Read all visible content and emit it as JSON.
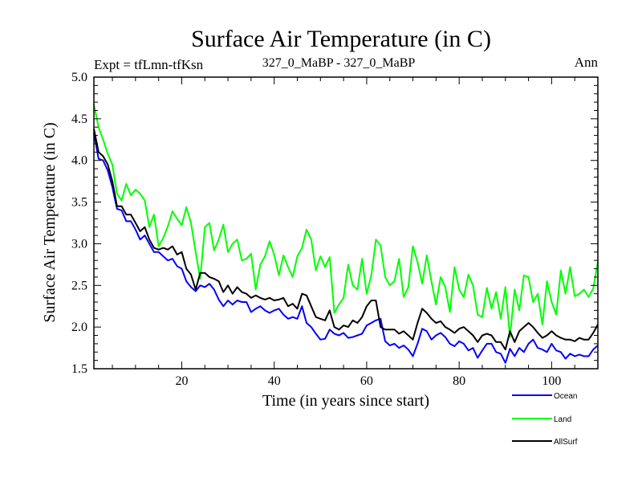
{
  "chart_data": {
    "type": "line",
    "title": "Surface Air Temperature (in C)",
    "left_label": "Expt = tfLmn-tfKsn",
    "center_label": "327_0_MaBP - 327_0_MaBP",
    "right_label": "Ann",
    "xlabel": "Time (in years since start)",
    "ylabel": "Surface Air Temperature (in C)",
    "xlim": [
      1,
      110
    ],
    "ylim": [
      1.5,
      5.0
    ],
    "x_ticks": [
      20,
      40,
      60,
      80,
      100
    ],
    "y_ticks": [
      "1.5",
      "2.0",
      "2.5",
      "3.0",
      "3.5",
      "4.0",
      "4.5",
      "5.0"
    ],
    "series": [
      {
        "name": "Ocean",
        "color": "#0000ff",
        "values": [
          4.33,
          4.02,
          4.0,
          3.88,
          3.68,
          3.42,
          3.4,
          3.27,
          3.27,
          3.17,
          3.05,
          3.1,
          3.0,
          2.9,
          2.9,
          2.85,
          2.8,
          2.82,
          2.73,
          2.7,
          2.55,
          2.48,
          2.43,
          2.5,
          2.48,
          2.52,
          2.45,
          2.33,
          2.25,
          2.32,
          2.27,
          2.32,
          2.3,
          2.3,
          2.18,
          2.22,
          2.25,
          2.2,
          2.17,
          2.2,
          2.22,
          2.15,
          2.1,
          2.12,
          2.1,
          2.25,
          2.05,
          2.0,
          1.92,
          1.85,
          1.86,
          1.97,
          1.92,
          1.9,
          1.93,
          1.87,
          1.88,
          1.9,
          1.92,
          2.02,
          2.05,
          2.08,
          2.1,
          1.83,
          1.78,
          1.8,
          1.75,
          1.78,
          1.73,
          1.65,
          1.8,
          1.98,
          1.95,
          1.85,
          1.9,
          1.93,
          1.88,
          1.8,
          1.77,
          1.83,
          1.8,
          1.72,
          1.75,
          1.63,
          1.72,
          1.8,
          1.8,
          1.7,
          1.68,
          1.57,
          1.74,
          1.65,
          1.75,
          1.7,
          1.8,
          1.85,
          1.75,
          1.73,
          1.7,
          1.8,
          1.72,
          1.7,
          1.62,
          1.68,
          1.65,
          1.67,
          1.65,
          1.65,
          1.73,
          1.78
        ]
      },
      {
        "name": "Land",
        "color": "#00ff00",
        "values": [
          4.67,
          4.4,
          4.25,
          4.08,
          3.95,
          3.6,
          3.52,
          3.72,
          3.58,
          3.65,
          3.6,
          3.52,
          3.2,
          3.35,
          2.97,
          3.07,
          3.21,
          3.39,
          3.3,
          3.22,
          3.44,
          3.25,
          2.9,
          2.58,
          3.2,
          3.25,
          2.92,
          3.05,
          3.23,
          2.9,
          3.0,
          3.05,
          2.8,
          2.82,
          2.88,
          2.45,
          2.75,
          2.85,
          3.03,
          2.87,
          2.62,
          2.86,
          2.72,
          2.6,
          2.85,
          2.95,
          3.17,
          3.05,
          2.68,
          2.85,
          2.72,
          2.84,
          2.17,
          2.27,
          2.35,
          2.75,
          2.5,
          2.45,
          2.82,
          2.4,
          2.62,
          3.05,
          2.98,
          2.6,
          2.5,
          2.55,
          2.82,
          2.36,
          2.48,
          2.97,
          2.78,
          2.52,
          2.86,
          2.55,
          2.27,
          2.6,
          2.48,
          2.18,
          2.72,
          2.45,
          2.36,
          2.63,
          2.5,
          2.15,
          2.12,
          2.47,
          2.22,
          2.42,
          2.1,
          2.48,
          1.88,
          2.45,
          2.2,
          2.62,
          2.6,
          2.3,
          2.4,
          2.03,
          2.55,
          2.3,
          2.15,
          2.68,
          2.4,
          2.72,
          2.37,
          2.4,
          2.45,
          2.36,
          2.46,
          2.78
        ]
      },
      {
        "name": "AllSurf",
        "color": "#000000",
        "values": [
          4.38,
          4.1,
          4.05,
          3.95,
          3.75,
          3.45,
          3.45,
          3.35,
          3.35,
          3.25,
          3.15,
          3.2,
          3.05,
          2.95,
          2.93,
          2.95,
          2.93,
          2.97,
          2.87,
          2.9,
          2.7,
          2.63,
          2.45,
          2.65,
          2.65,
          2.6,
          2.58,
          2.55,
          2.42,
          2.5,
          2.4,
          2.48,
          2.42,
          2.4,
          2.35,
          2.38,
          2.35,
          2.33,
          2.35,
          2.32,
          2.33,
          2.35,
          2.25,
          2.28,
          2.22,
          2.4,
          2.38,
          2.25,
          2.12,
          2.1,
          2.08,
          2.2,
          2.0,
          1.97,
          2.02,
          2.0,
          2.08,
          2.05,
          2.12,
          2.25,
          2.32,
          2.32,
          2.0,
          1.97,
          1.97,
          1.97,
          1.92,
          1.95,
          1.9,
          1.85,
          2.05,
          2.22,
          2.17,
          2.1,
          2.05,
          2.07,
          2.0,
          1.97,
          1.93,
          1.98,
          2.0,
          1.95,
          1.9,
          1.82,
          1.9,
          1.92,
          1.9,
          1.82,
          1.82,
          1.73,
          1.95,
          1.82,
          1.95,
          2.0,
          2.05,
          2.0,
          1.93,
          1.87,
          1.9,
          1.95,
          1.9,
          1.87,
          1.85,
          1.85,
          1.83,
          1.87,
          1.85,
          1.85,
          1.93,
          2.03
        ]
      }
    ]
  }
}
